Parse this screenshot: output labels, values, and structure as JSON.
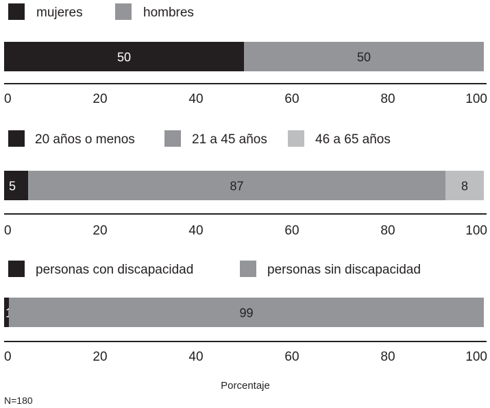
{
  "chart_data": [
    {
      "type": "bar",
      "orientation": "horizontal",
      "stacked": true,
      "legend_position": "top-left",
      "xlim": [
        0,
        100
      ],
      "ticks": [
        0,
        20,
        40,
        60,
        80,
        100
      ],
      "series": [
        {
          "name": "mujeres",
          "value": 50,
          "color": "#231f20",
          "label_color": "#ffffff"
        },
        {
          "name": "hombres",
          "value": 50,
          "color": "#939598",
          "label_color": "#231f20"
        }
      ]
    },
    {
      "type": "bar",
      "orientation": "horizontal",
      "stacked": true,
      "legend_position": "top-left",
      "xlim": [
        0,
        100
      ],
      "ticks": [
        0,
        20,
        40,
        60,
        80,
        100
      ],
      "series": [
        {
          "name": "20 años o menos",
          "value": 5,
          "color": "#231f20",
          "label_color": "#ffffff"
        },
        {
          "name": "21 a 45 años",
          "value": 87,
          "color": "#939598",
          "label_color": "#231f20"
        },
        {
          "name": "46 a 65 años",
          "value": 8,
          "color": "#bcbec0",
          "label_color": "#231f20"
        }
      ]
    },
    {
      "type": "bar",
      "orientation": "horizontal",
      "stacked": true,
      "legend_position": "top-left",
      "xlim": [
        0,
        100
      ],
      "ticks": [
        0,
        20,
        40,
        60,
        80,
        100
      ],
      "series": [
        {
          "name": "personas con discapacidad",
          "value": 1,
          "color": "#231f20",
          "label_color": "#ffffff"
        },
        {
          "name": "personas sin discapacidad",
          "value": 99,
          "color": "#939598",
          "label_color": "#231f20"
        }
      ]
    }
  ],
  "xlabel": "Porcentaje",
  "note": "N=180"
}
